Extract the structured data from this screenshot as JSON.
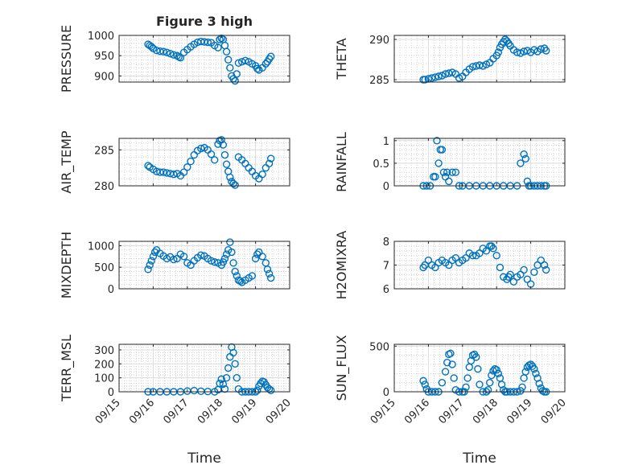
{
  "chart_data": [
    {
      "type": "scatter",
      "title": "Figure 3 high",
      "ylabel": "PRESSURE",
      "ylim": [
        885,
        1000
      ],
      "yticks": [
        900,
        950,
        1000
      ],
      "xlim": [
        15,
        20
      ],
      "xticks": [
        "09/15",
        "09/16",
        "09/17",
        "09/18",
        "09/19",
        "09/20"
      ],
      "xlabel": "",
      "x": [
        15.85,
        15.9,
        15.95,
        16.0,
        16.1,
        16.2,
        16.3,
        16.4,
        16.5,
        16.6,
        16.7,
        16.75,
        16.8,
        16.9,
        17.0,
        17.1,
        17.2,
        17.3,
        17.4,
        17.5,
        17.6,
        17.7,
        17.8,
        17.9,
        17.95,
        18.0,
        18.05,
        18.1,
        18.15,
        18.2,
        18.25,
        18.3,
        18.35,
        18.4,
        18.45,
        18.5,
        18.6,
        18.7,
        18.8,
        18.9,
        19.0,
        19.05,
        19.1,
        19.2,
        19.3,
        19.35,
        19.4,
        19.45
      ],
      "values": [
        978,
        975,
        972,
        968,
        963,
        961,
        960,
        958,
        955,
        952,
        950,
        947,
        945,
        958,
        965,
        972,
        978,
        983,
        985,
        984,
        983,
        982,
        975,
        970,
        990,
        993,
        990,
        975,
        960,
        940,
        920,
        900,
        893,
        888,
        905,
        932,
        935,
        938,
        935,
        930,
        925,
        918,
        915,
        920,
        930,
        935,
        942,
        948
      ]
    },
    {
      "type": "scatter",
      "ylabel": "THETA",
      "ylim": [
        284.7,
        290.5
      ],
      "yticks": [
        285,
        290
      ],
      "xlim": [
        15,
        20
      ],
      "xticks": [
        "09/15",
        "09/16",
        "09/17",
        "09/18",
        "09/19",
        "09/20"
      ],
      "xlabel": "",
      "x": [
        15.85,
        15.9,
        16.0,
        16.1,
        16.2,
        16.3,
        16.4,
        16.5,
        16.6,
        16.7,
        16.8,
        16.9,
        17.0,
        17.1,
        17.2,
        17.3,
        17.4,
        17.5,
        17.6,
        17.7,
        17.8,
        17.9,
        18.0,
        18.05,
        18.1,
        18.15,
        18.2,
        18.25,
        18.3,
        18.35,
        18.4,
        18.5,
        18.6,
        18.7,
        18.8,
        18.9,
        19.0,
        19.1,
        19.2,
        19.3,
        19.4,
        19.45
      ],
      "values": [
        285.0,
        285.0,
        285.1,
        285.2,
        285.3,
        285.4,
        285.5,
        285.7,
        285.8,
        285.9,
        285.7,
        285.2,
        285.4,
        285.9,
        286.3,
        286.6,
        286.7,
        286.8,
        286.7,
        286.9,
        287.1,
        287.6,
        288.0,
        288.4,
        289.0,
        289.4,
        289.7,
        290.0,
        289.8,
        289.5,
        289.2,
        288.7,
        288.4,
        288.3,
        288.5,
        288.6,
        288.4,
        288.7,
        288.5,
        288.8,
        288.9,
        288.6
      ]
    },
    {
      "type": "scatter",
      "ylabel": "AIR_TEMP",
      "ylim": [
        280,
        286.6
      ],
      "yticks": [
        280,
        285
      ],
      "xlim": [
        15,
        20
      ],
      "xticks": [
        "09/15",
        "09/16",
        "09/17",
        "09/18",
        "09/19",
        "09/20"
      ],
      "xlabel": "",
      "x": [
        15.85,
        15.9,
        16.0,
        16.1,
        16.2,
        16.3,
        16.4,
        16.5,
        16.6,
        16.7,
        16.8,
        16.9,
        17.0,
        17.1,
        17.2,
        17.3,
        17.4,
        17.5,
        17.6,
        17.7,
        17.8,
        17.9,
        17.95,
        18.0,
        18.05,
        18.1,
        18.15,
        18.2,
        18.25,
        18.3,
        18.35,
        18.4,
        18.5,
        18.6,
        18.7,
        18.8,
        18.9,
        19.0,
        19.1,
        19.2,
        19.3,
        19.4,
        19.45
      ],
      "values": [
        282.8,
        282.6,
        282.3,
        282.0,
        281.9,
        281.9,
        281.8,
        281.7,
        281.6,
        281.7,
        281.4,
        281.9,
        282.6,
        283.4,
        284.3,
        284.9,
        285.2,
        285.3,
        285.0,
        284.4,
        283.6,
        285.8,
        286.3,
        286.4,
        285.7,
        284.3,
        283.0,
        282.0,
        281.2,
        280.6,
        280.3,
        280.1,
        284.0,
        283.6,
        283.1,
        282.5,
        282.0,
        281.4,
        281.0,
        281.6,
        282.5,
        283.1,
        283.8
      ]
    },
    {
      "type": "scatter",
      "ylabel": "RAINFALL",
      "ylim": [
        0,
        1.05
      ],
      "yticks": [
        0,
        0.5,
        1
      ],
      "xlim": [
        15,
        20
      ],
      "xticks": [
        "09/15",
        "09/16",
        "09/17",
        "09/18",
        "09/19",
        "09/20"
      ],
      "xlabel": "",
      "x": [
        15.85,
        15.95,
        16.05,
        16.15,
        16.2,
        16.25,
        16.3,
        16.35,
        16.4,
        16.45,
        16.5,
        16.55,
        16.6,
        16.7,
        16.8,
        16.9,
        17.0,
        17.2,
        17.4,
        17.6,
        17.8,
        18.0,
        18.2,
        18.4,
        18.6,
        18.7,
        18.8,
        18.85,
        18.9,
        18.95,
        19.0,
        19.1,
        19.2,
        19.3,
        19.4,
        19.45
      ],
      "values": [
        0,
        0,
        0,
        0.2,
        0.2,
        1.0,
        0.5,
        0.8,
        0.8,
        0.3,
        0.2,
        0.3,
        0.1,
        0.3,
        0.3,
        0,
        0,
        0,
        0,
        0,
        0,
        0,
        0,
        0,
        0,
        0.5,
        0.7,
        0.6,
        0.1,
        0,
        0,
        0,
        0,
        0,
        0,
        0
      ]
    },
    {
      "type": "scatter",
      "ylabel": "MIXDEPTH",
      "ylim": [
        0,
        1100
      ],
      "yticks": [
        0,
        500,
        1000
      ],
      "xlim": [
        15,
        20
      ],
      "xticks": [
        "09/15",
        "09/16",
        "09/17",
        "09/18",
        "09/19",
        "09/20"
      ],
      "xlabel": "",
      "x": [
        15.85,
        15.9,
        15.95,
        16.0,
        16.05,
        16.1,
        16.2,
        16.3,
        16.4,
        16.5,
        16.6,
        16.7,
        16.8,
        16.9,
        17.0,
        17.1,
        17.2,
        17.3,
        17.4,
        17.5,
        17.6,
        17.7,
        17.8,
        17.9,
        18.0,
        18.05,
        18.1,
        18.15,
        18.2,
        18.25,
        18.3,
        18.35,
        18.4,
        18.45,
        18.5,
        18.55,
        18.6,
        18.7,
        18.8,
        18.9,
        19.0,
        19.05,
        19.1,
        19.2,
        19.3,
        19.35,
        19.4,
        19.45
      ],
      "values": [
        450,
        550,
        650,
        750,
        850,
        900,
        820,
        760,
        700,
        740,
        680,
        700,
        800,
        750,
        600,
        550,
        650,
        720,
        780,
        760,
        700,
        650,
        620,
        600,
        550,
        620,
        700,
        800,
        900,
        1080,
        850,
        600,
        400,
        300,
        200,
        180,
        150,
        200,
        250,
        300,
        700,
        800,
        850,
        750,
        600,
        450,
        350,
        250
      ]
    },
    {
      "type": "scatter",
      "ylabel": "H2OMIXRA",
      "ylim": [
        6,
        8
      ],
      "yticks": [
        6,
        7,
        8
      ],
      "xlim": [
        15,
        20
      ],
      "xticks": [
        "09/15",
        "09/16",
        "09/17",
        "09/18",
        "09/19",
        "09/20"
      ],
      "xlabel": "",
      "x": [
        15.85,
        15.9,
        16.0,
        16.1,
        16.2,
        16.3,
        16.4,
        16.5,
        16.6,
        16.7,
        16.8,
        16.9,
        17.0,
        17.1,
        17.2,
        17.3,
        17.4,
        17.5,
        17.6,
        17.7,
        17.8,
        17.85,
        17.9,
        18.0,
        18.1,
        18.2,
        18.3,
        18.35,
        18.4,
        18.5,
        18.6,
        18.7,
        18.8,
        18.9,
        19.0,
        19.1,
        19.2,
        19.3,
        19.4,
        19.45
      ],
      "values": [
        6.9,
        7.0,
        7.2,
        7.0,
        6.9,
        7.1,
        7.2,
        7.1,
        7.0,
        7.2,
        7.3,
        7.1,
        7.2,
        7.3,
        7.5,
        7.4,
        7.4,
        7.5,
        7.7,
        7.6,
        7.8,
        7.8,
        7.7,
        7.4,
        6.9,
        6.5,
        6.4,
        6.5,
        6.6,
        6.3,
        6.5,
        6.6,
        6.8,
        6.4,
        6.2,
        6.7,
        7.0,
        7.2,
        7.0,
        6.8
      ]
    },
    {
      "type": "scatter",
      "ylabel": "TERR_MSL",
      "ylim": [
        0,
        340
      ],
      "yticks": [
        0,
        100,
        200,
        300
      ],
      "xlim": [
        15,
        20
      ],
      "xticks": [
        "09/15",
        "09/16",
        "09/17",
        "09/18",
        "09/19",
        "09/20"
      ],
      "xlabel": "Time",
      "x": [
        15.85,
        16.0,
        16.2,
        16.4,
        16.6,
        16.8,
        17.0,
        17.2,
        17.4,
        17.6,
        17.8,
        17.9,
        17.95,
        18.0,
        18.05,
        18.1,
        18.15,
        18.2,
        18.25,
        18.3,
        18.35,
        18.4,
        18.45,
        18.5,
        18.6,
        18.7,
        18.8,
        18.9,
        19.0,
        19.05,
        19.1,
        19.15,
        19.2,
        19.25,
        19.3,
        19.35,
        19.4,
        19.45
      ],
      "values": [
        0,
        0,
        0,
        0,
        0,
        0,
        5,
        8,
        4,
        2,
        0,
        15,
        60,
        90,
        55,
        20,
        100,
        170,
        250,
        320,
        280,
        200,
        100,
        20,
        0,
        0,
        0,
        0,
        0,
        10,
        40,
        60,
        75,
        70,
        50,
        30,
        20,
        10
      ]
    },
    {
      "type": "scatter",
      "ylabel": "SUN_FLUX",
      "ylim": [
        0,
        520
      ],
      "yticks": [
        0,
        500
      ],
      "xlim": [
        15,
        20
      ],
      "xticks": [
        "09/15",
        "09/16",
        "09/17",
        "09/18",
        "09/19",
        "09/20"
      ],
      "xlabel": "Time",
      "x": [
        15.85,
        15.9,
        15.95,
        16.0,
        16.1,
        16.2,
        16.3,
        16.4,
        16.5,
        16.55,
        16.6,
        16.65,
        16.7,
        16.75,
        16.8,
        16.9,
        17.0,
        17.05,
        17.1,
        17.15,
        17.2,
        17.25,
        17.3,
        17.35,
        17.4,
        17.45,
        17.5,
        17.6,
        17.7,
        17.75,
        17.8,
        17.85,
        17.9,
        17.95,
        18.0,
        18.05,
        18.1,
        18.15,
        18.2,
        18.25,
        18.3,
        18.4,
        18.5,
        18.6,
        18.7,
        18.75,
        18.8,
        18.85,
        18.9,
        18.95,
        19.0,
        19.05,
        19.1,
        19.15,
        19.2,
        19.25,
        19.3,
        19.35,
        19.4,
        19.45
      ],
      "values": [
        120,
        80,
        30,
        0,
        0,
        0,
        0,
        100,
        220,
        320,
        410,
        420,
        300,
        150,
        20,
        0,
        0,
        0,
        50,
        150,
        270,
        340,
        400,
        410,
        380,
        250,
        80,
        0,
        0,
        20,
        100,
        180,
        230,
        250,
        240,
        200,
        150,
        80,
        20,
        0,
        0,
        0,
        0,
        0,
        10,
        50,
        150,
        220,
        270,
        290,
        300,
        280,
        250,
        200,
        150,
        90,
        40,
        10,
        0,
        0
      ]
    }
  ]
}
